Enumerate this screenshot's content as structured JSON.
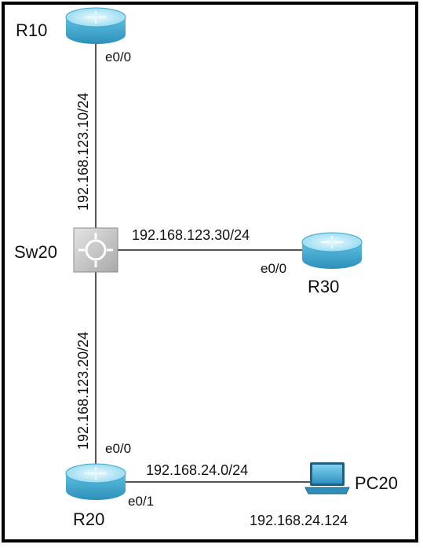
{
  "devices": {
    "r10": {
      "name": "R10",
      "icon": "router-icon"
    },
    "r20": {
      "name": "R20",
      "icon": "router-icon"
    },
    "r30": {
      "name": "R30",
      "icon": "router-icon"
    },
    "sw20": {
      "name": "Sw20",
      "icon": "switch-icon"
    },
    "pc20": {
      "name": "PC20",
      "icon": "laptop-icon",
      "ip": "192.168.24.124"
    }
  },
  "links": {
    "r10_sw20": {
      "subnet": "192.168.123.10/24",
      "iface": "e0/0"
    },
    "sw20_r30": {
      "subnet": "192.168.123.30/24",
      "iface": "e0/0"
    },
    "sw20_r20": {
      "subnet": "192.168.123.20/24",
      "iface": "e0/0"
    },
    "r20_pc20": {
      "subnet": "192.168.24.0/24",
      "iface": "e0/1"
    }
  },
  "colors": {
    "border": "#000000",
    "link": "#555555",
    "router_top": "#b9ecf8",
    "router_side": "#3fa6cd",
    "switch": "#c8c8c8"
  }
}
